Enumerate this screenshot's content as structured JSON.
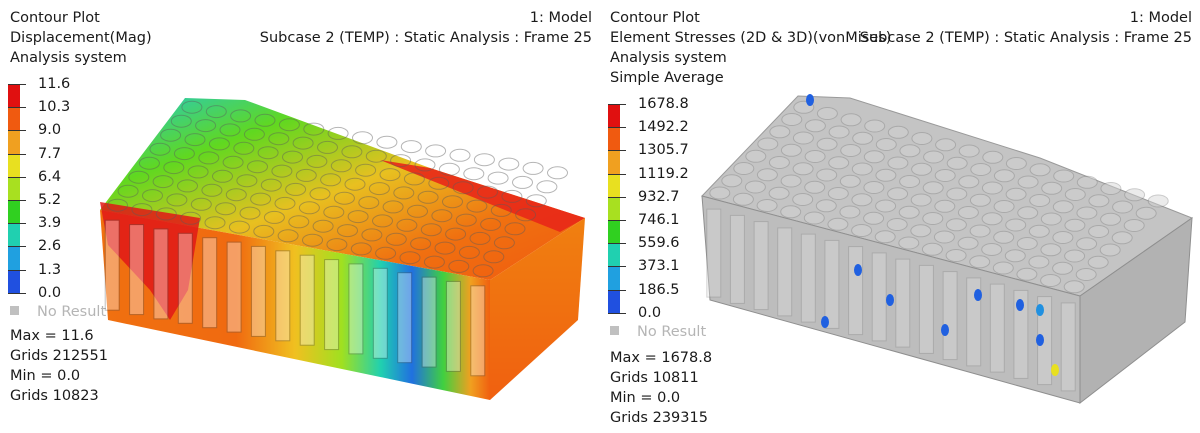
{
  "left": {
    "title": "Contour Plot",
    "subtitle": "Displacement(Mag)",
    "system": "Analysis system",
    "model": "1: Model",
    "subcase": "Subcase 2 (TEMP) : Static Analysis : Frame 25",
    "legend_values": [
      "11.6",
      "10.3",
      "9.0",
      "7.7",
      "6.4",
      "5.2",
      "3.9",
      "2.6",
      "1.3",
      "0.0"
    ],
    "legend_colors": [
      "#e01010",
      "#f05a10",
      "#f0a020",
      "#e8e020",
      "#a8e020",
      "#30d020",
      "#20d0b0",
      "#20a0e0",
      "#2050e0",
      "#c0c0c0"
    ],
    "no_result": "No Result",
    "max": "Max = 11.6",
    "max_grid": "Grids 212551",
    "min": "Min = 0.0",
    "min_grid": "Grids 10823"
  },
  "right": {
    "title": "Contour Plot",
    "subtitle": "Element Stresses (2D & 3D)(vonMises)",
    "system": "Analysis system",
    "average": "Simple Average",
    "model": "1: Model",
    "subcase": "Subcase 2 (TEMP) : Static Analysis : Frame 25",
    "legend_values": [
      "1678.8",
      "1492.2",
      "1305.7",
      "1119.2",
      "932.7",
      "746.1",
      "559.6",
      "373.1",
      "186.5",
      "0.0"
    ],
    "legend_colors": [
      "#e01010",
      "#f05a10",
      "#f0a020",
      "#e8e020",
      "#a8e020",
      "#30d020",
      "#20d0b0",
      "#20a0e0",
      "#2050e0",
      "#c0c0c0"
    ],
    "no_result": "No Result",
    "max": "Max = 1678.8",
    "max_grid": "Grids 10811",
    "min": "Min = 0.0",
    "min_grid": "Grids 239315"
  }
}
